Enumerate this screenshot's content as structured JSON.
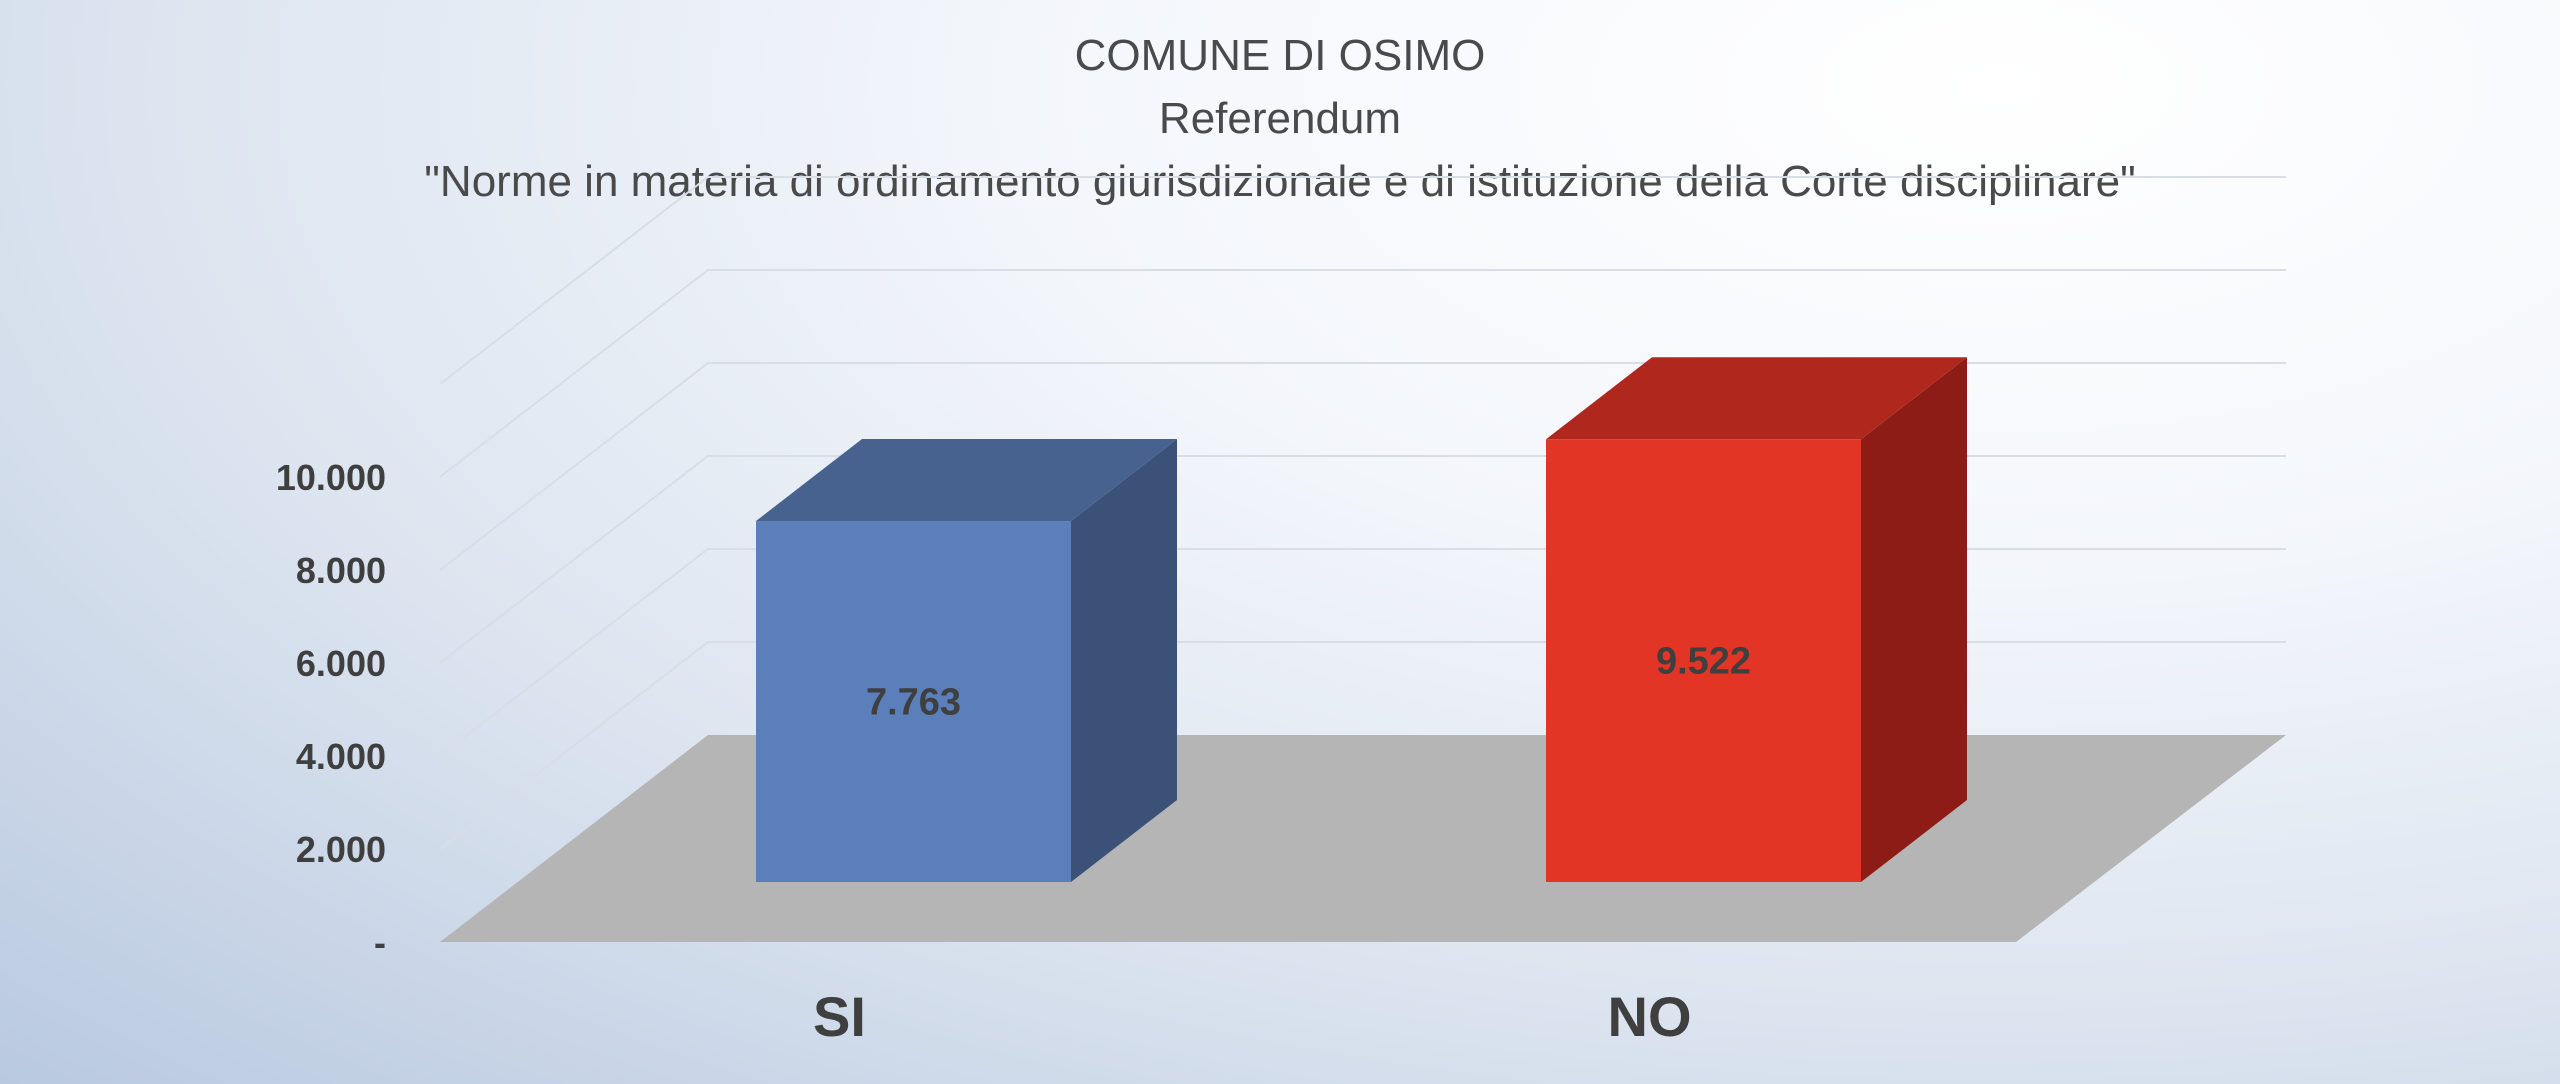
{
  "chart_data": {
    "type": "bar",
    "title_lines": [
      "COMUNE DI OSIMO",
      "Referendum",
      "\"Norme in materia di ordinamento giurisdizionale e di istituzione della Corte disciplinare\""
    ],
    "categories": [
      "SI",
      "NO"
    ],
    "values": [
      7763,
      9522
    ],
    "value_labels": [
      "7.763",
      "9.522"
    ],
    "yticks": [
      0,
      2000,
      4000,
      6000,
      8000,
      10000
    ],
    "ytick_labels": [
      "-",
      "2.000",
      "4.000",
      "6.000",
      "8.000",
      "10.000"
    ],
    "ylim": [
      0,
      10000
    ],
    "grid": true,
    "style": "3d-column",
    "colors": {
      "SI": {
        "front": "#5b7fbb",
        "top": "#47628f",
        "side": "#3b5178"
      },
      "NO": {
        "front": "#e33526",
        "top": "#b0271d",
        "side": "#8e1c16"
      },
      "floor": "#b5b5b5",
      "gridline": "#d8dde6"
    }
  }
}
